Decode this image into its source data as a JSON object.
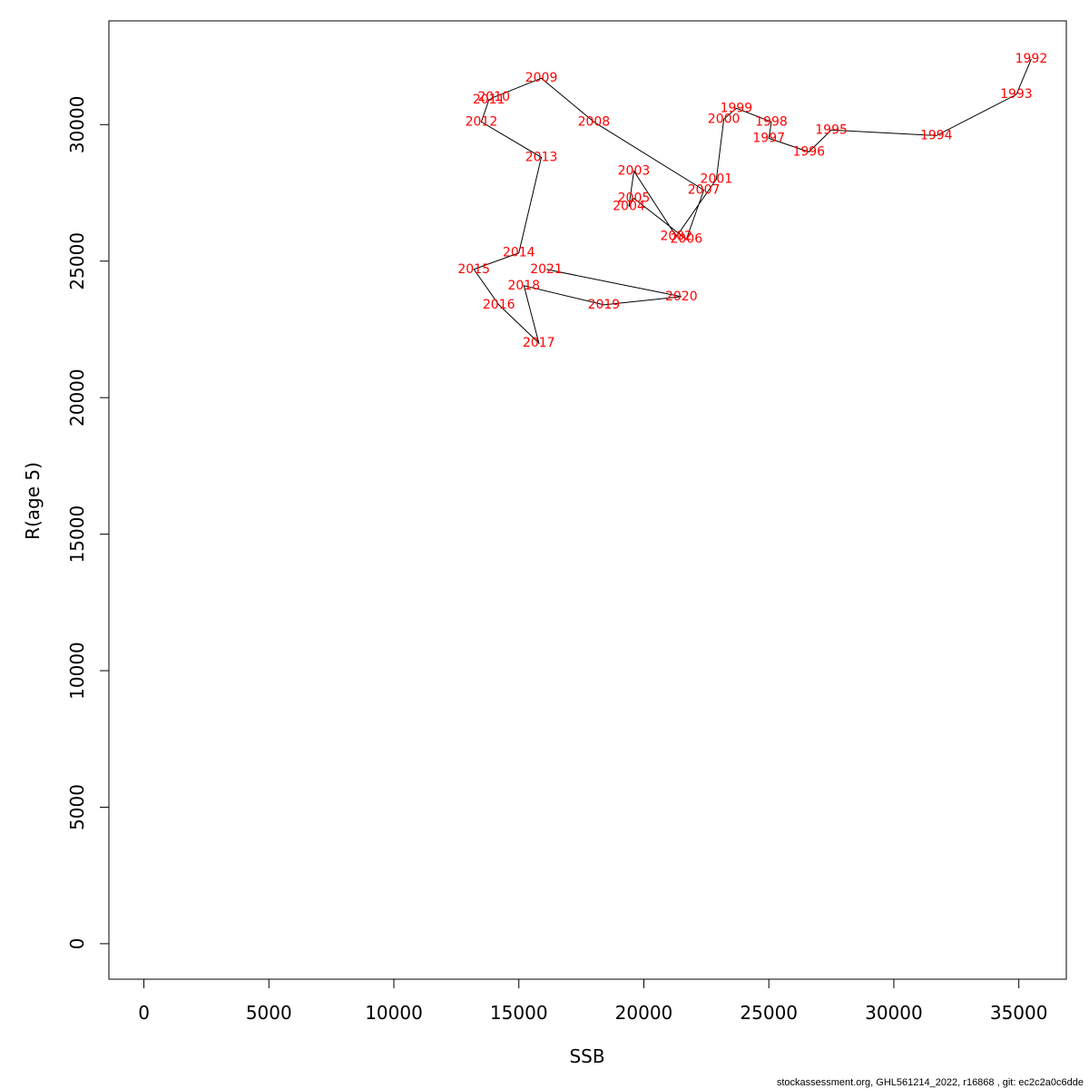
{
  "chart_data": {
    "type": "line",
    "xlabel": "SSB",
    "ylabel": "R(age 5)",
    "xlim": [
      -1400,
      36900
    ],
    "ylim": [
      -1300,
      33800
    ],
    "xticks": [
      0,
      5000,
      10000,
      15000,
      20000,
      25000,
      30000,
      35000
    ],
    "yticks": [
      0,
      5000,
      10000,
      15000,
      20000,
      25000,
      30000
    ],
    "points": [
      {
        "label": "1992",
        "x": 35500,
        "y": 32400
      },
      {
        "label": "1993",
        "x": 34900,
        "y": 31100
      },
      {
        "label": "1994",
        "x": 31700,
        "y": 29600
      },
      {
        "label": "1995",
        "x": 27500,
        "y": 29800
      },
      {
        "label": "1996",
        "x": 26600,
        "y": 29000
      },
      {
        "label": "1997",
        "x": 25000,
        "y": 29500
      },
      {
        "label": "1998",
        "x": 25100,
        "y": 30100
      },
      {
        "label": "1999",
        "x": 23700,
        "y": 30600
      },
      {
        "label": "2000",
        "x": 23200,
        "y": 30200
      },
      {
        "label": "2001",
        "x": 22900,
        "y": 28000
      },
      {
        "label": "2002",
        "x": 21300,
        "y": 25900
      },
      {
        "label": "2003",
        "x": 19600,
        "y": 28300
      },
      {
        "label": "2004",
        "x": 19400,
        "y": 27000
      },
      {
        "label": "2005",
        "x": 19600,
        "y": 27300
      },
      {
        "label": "2006",
        "x": 21700,
        "y": 25800
      },
      {
        "label": "2007",
        "x": 22400,
        "y": 27600
      },
      {
        "label": "2008",
        "x": 18000,
        "y": 30100
      },
      {
        "label": "2009",
        "x": 15900,
        "y": 31700
      },
      {
        "label": "2010",
        "x": 14000,
        "y": 31000
      },
      {
        "label": "2011",
        "x": 13800,
        "y": 30900
      },
      {
        "label": "2012",
        "x": 13500,
        "y": 30100
      },
      {
        "label": "2013",
        "x": 15900,
        "y": 28800
      },
      {
        "label": "2014",
        "x": 15000,
        "y": 25300
      },
      {
        "label": "2015",
        "x": 13200,
        "y": 24700
      },
      {
        "label": "2016",
        "x": 14200,
        "y": 23400
      },
      {
        "label": "2017",
        "x": 15800,
        "y": 22000
      },
      {
        "label": "2018",
        "x": 15200,
        "y": 24100
      },
      {
        "label": "2019",
        "x": 18400,
        "y": 23400
      },
      {
        "label": "2020",
        "x": 21500,
        "y": 23700
      },
      {
        "label": "2021",
        "x": 16100,
        "y": 24700
      }
    ]
  },
  "footer": {
    "text": "stockassessment.org, GHL561214_2022, r16868 , git: ec2c2a0c6dde"
  }
}
